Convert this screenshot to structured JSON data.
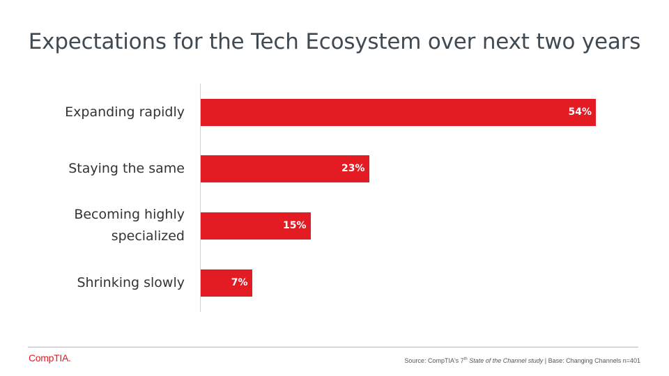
{
  "title": "Expectations for the Tech Ecosystem over next two years",
  "chart_data": {
    "type": "bar",
    "orientation": "horizontal",
    "categories": [
      "Expanding rapidly",
      "Staying the same",
      "Becoming highly specialized",
      "Shrinking slowly"
    ],
    "category_lines": [
      [
        "Expanding rapidly"
      ],
      [
        "Staying the same"
      ],
      [
        "Becoming highly",
        "specialized"
      ],
      [
        "Shrinking slowly"
      ]
    ],
    "values": [
      54,
      23,
      15,
      7
    ],
    "value_labels": [
      "54%",
      "23%",
      "15%",
      "7%"
    ],
    "unit": "%",
    "bar_color": "#e31b23",
    "xlim": [
      0,
      60
    ]
  },
  "footer": {
    "logo": "CompTIA.",
    "source_prefix": "Source: CompTIA's 7",
    "source_sup": "th",
    "source_study": "State of the Channel study",
    "source_suffix": "| Base:  Changing Channels n=401"
  }
}
